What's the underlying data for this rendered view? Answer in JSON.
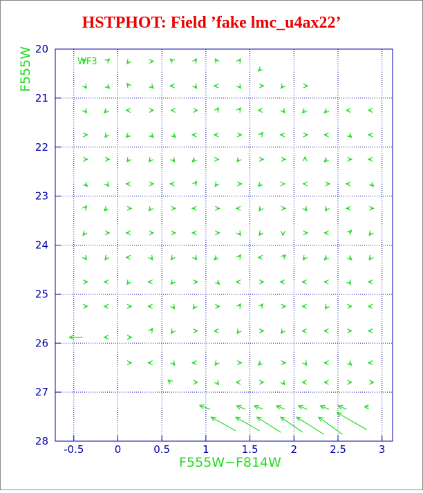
{
  "chart_data": {
    "type": "quiver",
    "title": "HSTPHOT: Field ’fake lmc_u4ax22’",
    "x_label": "F555W−F814W",
    "y_label": "F555W",
    "annotation": "WF3",
    "xlim": [
      -0.71,
      3.12
    ],
    "ylim": [
      20,
      28
    ],
    "y_inverted": true,
    "grid": true,
    "xticks": [
      -0.5,
      0,
      0.5,
      1,
      1.5,
      2,
      2.5,
      3
    ],
    "yticks": [
      20,
      21,
      22,
      23,
      24,
      25,
      26,
      27,
      28
    ],
    "color": "#22dd22",
    "axis_color": "#0000aa",
    "vectors": [
      {
        "x": -0.375,
        "y": 20.25,
        "dx": -0.03,
        "dy": -0.05
      },
      {
        "x": -0.125,
        "y": 20.25,
        "dx": 0.03,
        "dy": -0.05
      },
      {
        "x": 0.125,
        "y": 20.25,
        "dx": -0.02,
        "dy": 0.05
      },
      {
        "x": 0.375,
        "y": 20.25,
        "dx": 0.03,
        "dy": 0
      },
      {
        "x": 0.625,
        "y": 20.25,
        "dx": -0.03,
        "dy": -0.05
      },
      {
        "x": 0.875,
        "y": 20.25,
        "dx": 0.02,
        "dy": -0.05
      },
      {
        "x": 1.125,
        "y": 20.25,
        "dx": -0.02,
        "dy": -0.05
      },
      {
        "x": 1.375,
        "y": 20.25,
        "dx": 0.02,
        "dy": -0.05
      },
      {
        "x": 1.625,
        "y": 20.4,
        "dx": -0.03,
        "dy": 0.05
      },
      {
        "x": -0.375,
        "y": 20.75,
        "dx": 0.02,
        "dy": 0.05
      },
      {
        "x": -0.125,
        "y": 20.75,
        "dx": 0.03,
        "dy": 0.05
      },
      {
        "x": 0.125,
        "y": 20.75,
        "dx": -0.02,
        "dy": -0.05
      },
      {
        "x": 0.375,
        "y": 20.75,
        "dx": 0.03,
        "dy": 0.05
      },
      {
        "x": 0.625,
        "y": 20.75,
        "dx": -0.03,
        "dy": 0
      },
      {
        "x": 0.875,
        "y": 20.75,
        "dx": 0.02,
        "dy": 0.05
      },
      {
        "x": 1.125,
        "y": 20.75,
        "dx": -0.03,
        "dy": 0
      },
      {
        "x": 1.375,
        "y": 20.75,
        "dx": 0.02,
        "dy": 0.05
      },
      {
        "x": 1.625,
        "y": 20.75,
        "dx": 0.03,
        "dy": 0
      },
      {
        "x": 1.875,
        "y": 20.75,
        "dx": -0.02,
        "dy": 0.05
      },
      {
        "x": 2.125,
        "y": 20.75,
        "dx": 0.03,
        "dy": 0
      },
      {
        "x": -0.375,
        "y": 21.25,
        "dx": 0.02,
        "dy": 0.05
      },
      {
        "x": -0.125,
        "y": 21.25,
        "dx": -0.03,
        "dy": 0.05
      },
      {
        "x": 0.125,
        "y": 21.25,
        "dx": -0.03,
        "dy": 0
      },
      {
        "x": 0.375,
        "y": 21.25,
        "dx": 0.03,
        "dy": 0
      },
      {
        "x": 0.625,
        "y": 21.25,
        "dx": -0.02,
        "dy": 0
      },
      {
        "x": 0.875,
        "y": 21.25,
        "dx": 0.03,
        "dy": 0
      },
      {
        "x": 1.125,
        "y": 21.25,
        "dx": 0.02,
        "dy": -0.05
      },
      {
        "x": 1.375,
        "y": 21.25,
        "dx": 0.02,
        "dy": -0.05
      },
      {
        "x": 1.625,
        "y": 21.25,
        "dx": -0.03,
        "dy": 0
      },
      {
        "x": 1.875,
        "y": 21.25,
        "dx": 0.02,
        "dy": 0.05
      },
      {
        "x": 2.125,
        "y": 21.25,
        "dx": -0.03,
        "dy": 0.05
      },
      {
        "x": 2.375,
        "y": 21.25,
        "dx": -0.03,
        "dy": 0.05
      },
      {
        "x": 2.625,
        "y": 21.25,
        "dx": -0.03,
        "dy": 0
      },
      {
        "x": 2.875,
        "y": 21.25,
        "dx": -0.03,
        "dy": 0
      },
      {
        "x": -0.375,
        "y": 21.75,
        "dx": 0.03,
        "dy": 0
      },
      {
        "x": -0.125,
        "y": 21.75,
        "dx": -0.02,
        "dy": 0.05
      },
      {
        "x": 0.125,
        "y": 21.75,
        "dx": -0.03,
        "dy": 0.05
      },
      {
        "x": 0.375,
        "y": 21.75,
        "dx": 0.03,
        "dy": 0.05
      },
      {
        "x": 0.625,
        "y": 21.75,
        "dx": 0.03,
        "dy": 0.05
      },
      {
        "x": 0.875,
        "y": 21.75,
        "dx": -0.03,
        "dy": 0
      },
      {
        "x": 1.125,
        "y": 21.75,
        "dx": -0.03,
        "dy": 0
      },
      {
        "x": 1.375,
        "y": 21.75,
        "dx": 0.03,
        "dy": 0
      },
      {
        "x": 1.625,
        "y": 21.75,
        "dx": 0.02,
        "dy": -0.05
      },
      {
        "x": 1.875,
        "y": 21.75,
        "dx": -0.03,
        "dy": 0
      },
      {
        "x": 2.125,
        "y": 21.75,
        "dx": 0.03,
        "dy": 0
      },
      {
        "x": 2.375,
        "y": 21.75,
        "dx": -0.03,
        "dy": 0
      },
      {
        "x": 2.625,
        "y": 21.75,
        "dx": 0.03,
        "dy": 0.05
      },
      {
        "x": 2.875,
        "y": 21.75,
        "dx": -0.03,
        "dy": 0
      },
      {
        "x": -0.375,
        "y": 22.25,
        "dx": 0.03,
        "dy": 0
      },
      {
        "x": -0.125,
        "y": 22.25,
        "dx": 0.03,
        "dy": 0
      },
      {
        "x": 0.125,
        "y": 22.25,
        "dx": -0.02,
        "dy": 0.05
      },
      {
        "x": 0.375,
        "y": 22.25,
        "dx": -0.02,
        "dy": 0.05
      },
      {
        "x": 0.625,
        "y": 22.25,
        "dx": 0.02,
        "dy": 0.05
      },
      {
        "x": 0.875,
        "y": 22.25,
        "dx": -0.03,
        "dy": 0.05
      },
      {
        "x": 1.125,
        "y": 22.25,
        "dx": 0.02,
        "dy": 0
      },
      {
        "x": 1.375,
        "y": 22.25,
        "dx": -0.02,
        "dy": 0.05
      },
      {
        "x": 1.625,
        "y": 22.25,
        "dx": 0.03,
        "dy": 0
      },
      {
        "x": 1.875,
        "y": 22.25,
        "dx": 0.03,
        "dy": 0
      },
      {
        "x": 2.125,
        "y": 22.25,
        "dx": 0,
        "dy": -0.05
      },
      {
        "x": 2.375,
        "y": 22.25,
        "dx": -0.03,
        "dy": 0.05
      },
      {
        "x": 2.625,
        "y": 22.25,
        "dx": 0.03,
        "dy": 0
      },
      {
        "x": 2.875,
        "y": 22.25,
        "dx": -0.03,
        "dy": 0
      },
      {
        "x": -0.375,
        "y": 22.75,
        "dx": 0.03,
        "dy": 0.05
      },
      {
        "x": -0.125,
        "y": 22.75,
        "dx": 0.02,
        "dy": 0.05
      },
      {
        "x": 0.125,
        "y": 22.75,
        "dx": -0.03,
        "dy": 0
      },
      {
        "x": 0.375,
        "y": 22.75,
        "dx": 0.03,
        "dy": 0
      },
      {
        "x": 0.625,
        "y": 22.75,
        "dx": -0.03,
        "dy": 0
      },
      {
        "x": 0.875,
        "y": 22.75,
        "dx": 0.02,
        "dy": -0.05
      },
      {
        "x": 1.125,
        "y": 22.75,
        "dx": -0.02,
        "dy": 0.05
      },
      {
        "x": 1.375,
        "y": 22.75,
        "dx": 0.03,
        "dy": 0
      },
      {
        "x": 1.625,
        "y": 22.75,
        "dx": -0.03,
        "dy": 0.05
      },
      {
        "x": 1.875,
        "y": 22.75,
        "dx": 0.02,
        "dy": 0
      },
      {
        "x": 2.125,
        "y": 22.75,
        "dx": -0.02,
        "dy": 0
      },
      {
        "x": 2.375,
        "y": 22.75,
        "dx": 0.03,
        "dy": 0
      },
      {
        "x": 2.625,
        "y": 22.75,
        "dx": -0.03,
        "dy": 0
      },
      {
        "x": 2.875,
        "y": 22.75,
        "dx": 0.03,
        "dy": 0.05
      },
      {
        "x": -0.375,
        "y": 23.25,
        "dx": 0.02,
        "dy": -0.05
      },
      {
        "x": -0.125,
        "y": 23.25,
        "dx": -0.03,
        "dy": 0.05
      },
      {
        "x": 0.125,
        "y": 23.25,
        "dx": 0.03,
        "dy": 0
      },
      {
        "x": 0.375,
        "y": 23.25,
        "dx": -0.02,
        "dy": 0.05
      },
      {
        "x": 0.625,
        "y": 23.25,
        "dx": 0.03,
        "dy": 0
      },
      {
        "x": 0.875,
        "y": 23.25,
        "dx": -0.03,
        "dy": 0
      },
      {
        "x": 1.125,
        "y": 23.25,
        "dx": 0.03,
        "dy": 0
      },
      {
        "x": 1.375,
        "y": 23.25,
        "dx": -0.03,
        "dy": 0
      },
      {
        "x": 1.625,
        "y": 23.25,
        "dx": -0.02,
        "dy": 0.05
      },
      {
        "x": 1.875,
        "y": 23.25,
        "dx": 0.03,
        "dy": 0
      },
      {
        "x": 2.125,
        "y": 23.25,
        "dx": 0.02,
        "dy": 0.05
      },
      {
        "x": 2.375,
        "y": 23.25,
        "dx": -0.02,
        "dy": 0.05
      },
      {
        "x": 2.625,
        "y": 23.25,
        "dx": -0.03,
        "dy": 0
      },
      {
        "x": 2.875,
        "y": 23.25,
        "dx": 0.03,
        "dy": 0
      },
      {
        "x": -0.375,
        "y": 23.75,
        "dx": -0.02,
        "dy": 0.05
      },
      {
        "x": -0.125,
        "y": 23.75,
        "dx": 0.03,
        "dy": 0
      },
      {
        "x": 0.125,
        "y": 23.75,
        "dx": -0.03,
        "dy": 0
      },
      {
        "x": 0.375,
        "y": 23.75,
        "dx": 0.03,
        "dy": 0
      },
      {
        "x": 0.625,
        "y": 23.75,
        "dx": 0.03,
        "dy": 0
      },
      {
        "x": 0.875,
        "y": 23.75,
        "dx": -0.03,
        "dy": 0
      },
      {
        "x": 1.125,
        "y": 23.75,
        "dx": 0.03,
        "dy": 0
      },
      {
        "x": 1.375,
        "y": 23.75,
        "dx": 0.02,
        "dy": 0.05
      },
      {
        "x": 1.625,
        "y": 23.75,
        "dx": -0.02,
        "dy": 0.05
      },
      {
        "x": 1.875,
        "y": 23.75,
        "dx": 0,
        "dy": 0.05
      },
      {
        "x": 2.125,
        "y": 23.75,
        "dx": 0.03,
        "dy": 0
      },
      {
        "x": 2.375,
        "y": 23.75,
        "dx": -0.03,
        "dy": 0
      },
      {
        "x": 2.625,
        "y": 23.75,
        "dx": 0.03,
        "dy": -0.05
      },
      {
        "x": 2.875,
        "y": 23.75,
        "dx": -0.02,
        "dy": 0.05
      },
      {
        "x": -0.375,
        "y": 24.25,
        "dx": 0.02,
        "dy": 0.05
      },
      {
        "x": -0.125,
        "y": 24.25,
        "dx": -0.02,
        "dy": 0.05
      },
      {
        "x": 0.125,
        "y": 24.25,
        "dx": -0.03,
        "dy": 0
      },
      {
        "x": 0.375,
        "y": 24.25,
        "dx": 0.02,
        "dy": 0.05
      },
      {
        "x": 0.625,
        "y": 24.25,
        "dx": -0.02,
        "dy": 0.05
      },
      {
        "x": 0.875,
        "y": 24.25,
        "dx": 0.02,
        "dy": 0.05
      },
      {
        "x": 1.125,
        "y": 24.25,
        "dx": -0.03,
        "dy": 0.05
      },
      {
        "x": 1.375,
        "y": 24.25,
        "dx": 0.02,
        "dy": -0.05
      },
      {
        "x": 1.625,
        "y": 24.25,
        "dx": -0.03,
        "dy": 0
      },
      {
        "x": 1.875,
        "y": 24.25,
        "dx": 0.03,
        "dy": -0.05
      },
      {
        "x": 2.125,
        "y": 24.25,
        "dx": -0.02,
        "dy": 0.05
      },
      {
        "x": 2.375,
        "y": 24.25,
        "dx": -0.03,
        "dy": 0.05
      },
      {
        "x": 2.625,
        "y": 24.25,
        "dx": 0.03,
        "dy": 0.05
      },
      {
        "x": 2.875,
        "y": 24.25,
        "dx": -0.02,
        "dy": 0.05
      },
      {
        "x": -0.375,
        "y": 24.75,
        "dx": 0.03,
        "dy": 0
      },
      {
        "x": -0.125,
        "y": 24.75,
        "dx": -0.03,
        "dy": 0
      },
      {
        "x": 0.125,
        "y": 24.75,
        "dx": -0.02,
        "dy": 0.05
      },
      {
        "x": 0.375,
        "y": 24.75,
        "dx": -0.03,
        "dy": 0
      },
      {
        "x": 0.625,
        "y": 24.75,
        "dx": -0.02,
        "dy": 0.05
      },
      {
        "x": 0.875,
        "y": 24.75,
        "dx": 0.03,
        "dy": 0
      },
      {
        "x": 1.125,
        "y": 24.75,
        "dx": 0.03,
        "dy": 0.05
      },
      {
        "x": 1.375,
        "y": 24.75,
        "dx": -0.03,
        "dy": 0
      },
      {
        "x": 1.625,
        "y": 24.75,
        "dx": 0.03,
        "dy": 0
      },
      {
        "x": 1.875,
        "y": 24.75,
        "dx": -0.03,
        "dy": 0
      },
      {
        "x": 2.125,
        "y": 24.75,
        "dx": -0.03,
        "dy": 0
      },
      {
        "x": 2.375,
        "y": 24.75,
        "dx": -0.03,
        "dy": 0
      },
      {
        "x": 2.625,
        "y": 24.75,
        "dx": 0.02,
        "dy": 0.05
      },
      {
        "x": 2.875,
        "y": 24.75,
        "dx": -0.03,
        "dy": 0
      },
      {
        "x": -0.375,
        "y": 25.25,
        "dx": 0.03,
        "dy": 0
      },
      {
        "x": -0.125,
        "y": 25.25,
        "dx": -0.03,
        "dy": 0
      },
      {
        "x": 0.125,
        "y": 25.25,
        "dx": 0.03,
        "dy": 0
      },
      {
        "x": 0.375,
        "y": 25.25,
        "dx": -0.03,
        "dy": 0
      },
      {
        "x": 0.625,
        "y": 25.25,
        "dx": 0.02,
        "dy": 0.05
      },
      {
        "x": 0.875,
        "y": 25.25,
        "dx": -0.02,
        "dy": 0.05
      },
      {
        "x": 1.125,
        "y": 25.25,
        "dx": 0.03,
        "dy": 0
      },
      {
        "x": 1.375,
        "y": 25.25,
        "dx": 0.02,
        "dy": -0.05
      },
      {
        "x": 1.625,
        "y": 25.25,
        "dx": 0.02,
        "dy": -0.05
      },
      {
        "x": 1.875,
        "y": 25.25,
        "dx": 0.03,
        "dy": 0
      },
      {
        "x": 2.125,
        "y": 25.25,
        "dx": -0.03,
        "dy": 0
      },
      {
        "x": 2.375,
        "y": 25.25,
        "dx": -0.02,
        "dy": 0.05
      },
      {
        "x": 2.625,
        "y": 25.25,
        "dx": 0.03,
        "dy": 0
      },
      {
        "x": 2.875,
        "y": 25.25,
        "dx": -0.03,
        "dy": 0
      },
      {
        "x": -0.4,
        "y": 25.88,
        "dx": -0.15,
        "dy": 0
      },
      {
        "x": -0.125,
        "y": 25.88,
        "dx": -0.03,
        "dy": 0
      },
      {
        "x": 0.125,
        "y": 25.88,
        "dx": 0.03,
        "dy": 0
      },
      {
        "x": 0.375,
        "y": 25.75,
        "dx": 0.02,
        "dy": -0.05
      },
      {
        "x": 0.625,
        "y": 25.75,
        "dx": -0.02,
        "dy": 0.05
      },
      {
        "x": 0.875,
        "y": 25.75,
        "dx": 0.03,
        "dy": 0
      },
      {
        "x": 1.125,
        "y": 25.75,
        "dx": -0.03,
        "dy": 0
      },
      {
        "x": 1.375,
        "y": 25.75,
        "dx": -0.02,
        "dy": 0.05
      },
      {
        "x": 1.625,
        "y": 25.75,
        "dx": 0.03,
        "dy": 0
      },
      {
        "x": 1.875,
        "y": 25.75,
        "dx": -0.02,
        "dy": 0.05
      },
      {
        "x": 2.125,
        "y": 25.75,
        "dx": -0.03,
        "dy": 0
      },
      {
        "x": 2.375,
        "y": 25.75,
        "dx": -0.03,
        "dy": 0
      },
      {
        "x": 2.625,
        "y": 25.75,
        "dx": 0.03,
        "dy": 0
      },
      {
        "x": 2.875,
        "y": 25.75,
        "dx": -0.03,
        "dy": 0
      },
      {
        "x": 0.125,
        "y": 26.4,
        "dx": 0.03,
        "dy": 0
      },
      {
        "x": 0.375,
        "y": 26.4,
        "dx": -0.03,
        "dy": 0
      },
      {
        "x": 0.625,
        "y": 26.4,
        "dx": 0.02,
        "dy": 0.05
      },
      {
        "x": 0.875,
        "y": 26.4,
        "dx": -0.03,
        "dy": 0
      },
      {
        "x": 1.125,
        "y": 26.4,
        "dx": -0.02,
        "dy": 0.05
      },
      {
        "x": 1.375,
        "y": 26.4,
        "dx": 0.03,
        "dy": 0
      },
      {
        "x": 1.625,
        "y": 26.4,
        "dx": -0.03,
        "dy": 0.05
      },
      {
        "x": 1.875,
        "y": 26.4,
        "dx": 0.03,
        "dy": 0
      },
      {
        "x": 2.125,
        "y": 26.4,
        "dx": 0.02,
        "dy": 0.05
      },
      {
        "x": 2.375,
        "y": 26.4,
        "dx": -0.03,
        "dy": 0
      },
      {
        "x": 2.625,
        "y": 26.4,
        "dx": 0.03,
        "dy": 0.05
      },
      {
        "x": 2.875,
        "y": 26.4,
        "dx": -0.03,
        "dy": 0
      },
      {
        "x": 0.6,
        "y": 26.8,
        "dx": -0.03,
        "dy": -0.05
      },
      {
        "x": 0.875,
        "y": 26.8,
        "dx": 0.03,
        "dy": 0
      },
      {
        "x": 1.125,
        "y": 26.8,
        "dx": 0.02,
        "dy": 0.05
      },
      {
        "x": 1.375,
        "y": 26.8,
        "dx": -0.03,
        "dy": 0
      },
      {
        "x": 1.625,
        "y": 26.8,
        "dx": 0.03,
        "dy": 0
      },
      {
        "x": 1.875,
        "y": 26.8,
        "dx": 0.02,
        "dy": 0.05
      },
      {
        "x": 2.125,
        "y": 26.8,
        "dx": -0.03,
        "dy": 0
      },
      {
        "x": 2.375,
        "y": 26.8,
        "dx": -0.03,
        "dy": 0
      },
      {
        "x": 2.625,
        "y": 26.8,
        "dx": 0.03,
        "dy": 0
      },
      {
        "x": 2.875,
        "y": 26.8,
        "dx": 0.03,
        "dy": 0
      },
      {
        "x": 1.05,
        "y": 27.35,
        "dx": -0.12,
        "dy": -0.08
      },
      {
        "x": 1.45,
        "y": 27.35,
        "dx": -0.1,
        "dy": -0.07
      },
      {
        "x": 1.65,
        "y": 27.35,
        "dx": -0.1,
        "dy": -0.07
      },
      {
        "x": 1.9,
        "y": 27.35,
        "dx": -0.1,
        "dy": -0.07
      },
      {
        "x": 2.15,
        "y": 27.35,
        "dx": -0.1,
        "dy": -0.07
      },
      {
        "x": 2.4,
        "y": 27.35,
        "dx": -0.1,
        "dy": -0.07
      },
      {
        "x": 2.6,
        "y": 27.35,
        "dx": -0.1,
        "dy": -0.07
      },
      {
        "x": 2.85,
        "y": 27.3,
        "dx": -0.05,
        "dy": 0
      },
      {
        "x": 1.34,
        "y": 27.79,
        "dx": -0.28,
        "dy": -0.28
      },
      {
        "x": 1.61,
        "y": 27.79,
        "dx": -0.27,
        "dy": -0.28
      },
      {
        "x": 1.85,
        "y": 27.82,
        "dx": -0.27,
        "dy": -0.31
      },
      {
        "x": 2.1,
        "y": 27.82,
        "dx": -0.25,
        "dy": -0.31
      },
      {
        "x": 2.34,
        "y": 27.86,
        "dx": -0.31,
        "dy": -0.35
      },
      {
        "x": 2.55,
        "y": 27.86,
        "dx": -0.27,
        "dy": -0.35
      },
      {
        "x": 2.83,
        "y": 27.77,
        "dx": -0.34,
        "dy": -0.35
      }
    ]
  }
}
